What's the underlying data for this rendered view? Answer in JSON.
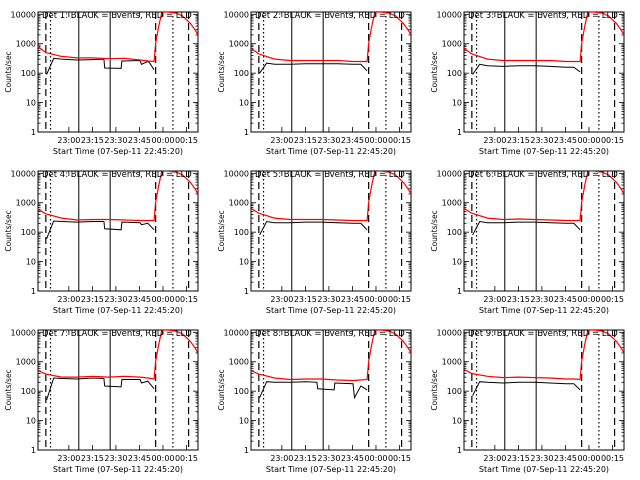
{
  "chart_data": {
    "type": "line",
    "layout": "3x3 grid",
    "x_axis": {
      "label": "Start Time (07-Sep-11 22:45:20)",
      "range_minutes_after_start": [
        -5,
        97
      ],
      "tick_labels": [
        "23:00",
        "23:15",
        "23:30",
        "23:45",
        "00:00",
        "00:15"
      ],
      "tick_minutes_after_start": [
        14.67,
        29.67,
        44.67,
        59.67,
        74.67,
        89.67
      ]
    },
    "y_axis": {
      "label": "Counts/sec",
      "scale": "log",
      "range": [
        1,
        12000
      ],
      "tick_labels": [
        "1",
        "10",
        "100",
        "1000",
        "10000"
      ]
    },
    "colors": {
      "events": "#000000",
      "lld": "#ff0000"
    },
    "marker_lines": [
      {
        "x": 0,
        "style": "dashed"
      },
      {
        "x": 3,
        "style": "dotted"
      },
      {
        "x": 21,
        "style": "solid"
      },
      {
        "x": 41,
        "style": "solid"
      },
      {
        "x": 70,
        "style": "dashed"
      },
      {
        "x": 81,
        "style": "dotted"
      },
      {
        "x": 91,
        "style": "dashed"
      }
    ],
    "panels": [
      {
        "title": "Det 1: BLACK = Events, RED = LLD",
        "lld": {
          "x": [
            -5,
            0,
            10,
            20,
            30,
            40,
            50,
            60,
            65,
            69,
            70,
            72,
            74,
            78,
            83,
            87,
            92,
            95,
            97
          ],
          "y": [
            800,
            500,
            370,
            330,
            330,
            310,
            320,
            280,
            260,
            250,
            1000,
            4000,
            12000,
            12000,
            11000,
            9000,
            5000,
            3000,
            2000
          ]
        },
        "events": {
          "x": [
            0.5,
            5,
            10,
            20,
            30,
            37,
            37.5,
            48,
            48.5,
            60,
            61,
            65,
            66,
            69
          ],
          "y": [
            90,
            320,
            300,
            280,
            290,
            300,
            150,
            145,
            260,
            270,
            200,
            250,
            230,
            130
          ]
        }
      },
      {
        "title": "Det 2: BLACK = Events, RED = LLD",
        "lld": {
          "x": [
            -5,
            0,
            10,
            20,
            30,
            40,
            50,
            60,
            65,
            69,
            70,
            72,
            74,
            78,
            83,
            87,
            92,
            95,
            97
          ],
          "y": [
            700,
            450,
            300,
            270,
            270,
            270,
            270,
            250,
            250,
            250,
            1000,
            4000,
            12000,
            12000,
            11000,
            9000,
            5000,
            3000,
            2000
          ]
        },
        "events": {
          "x": [
            0.5,
            5,
            10,
            20,
            30,
            40,
            50,
            60,
            65,
            69
          ],
          "y": [
            100,
            220,
            200,
            200,
            210,
            210,
            210,
            200,
            200,
            120
          ]
        }
      },
      {
        "title": "Det 3: BLACK = Events, RED = LLD",
        "lld": {
          "x": [
            -5,
            0,
            10,
            20,
            30,
            40,
            50,
            60,
            65,
            69,
            70,
            72,
            74,
            78,
            83,
            87,
            92,
            95,
            97
          ],
          "y": [
            700,
            450,
            300,
            270,
            270,
            270,
            270,
            250,
            250,
            250,
            1000,
            4000,
            12000,
            12000,
            11000,
            9000,
            5000,
            3000,
            2000
          ]
        },
        "events": {
          "x": [
            0.5,
            5,
            10,
            20,
            30,
            40,
            50,
            60,
            65,
            69
          ],
          "y": [
            90,
            200,
            180,
            170,
            180,
            180,
            170,
            160,
            160,
            110
          ]
        }
      },
      {
        "title": "Det 4: BLACK = Events, RED = LLD",
        "lld": {
          "x": [
            -5,
            0,
            10,
            20,
            30,
            40,
            50,
            60,
            65,
            69,
            70,
            72,
            74,
            78,
            83,
            87,
            92,
            95,
            97
          ],
          "y": [
            600,
            420,
            300,
            260,
            270,
            270,
            260,
            250,
            250,
            250,
            1000,
            4000,
            12000,
            12000,
            11000,
            9000,
            5000,
            3000,
            2000
          ]
        },
        "events": {
          "x": [
            0.5,
            5,
            10,
            20,
            30,
            37,
            37.5,
            48,
            48.5,
            60,
            61,
            65,
            69
          ],
          "y": [
            60,
            240,
            230,
            220,
            230,
            230,
            130,
            120,
            220,
            210,
            180,
            200,
            120
          ]
        }
      },
      {
        "title": "Det 5: BLACK = Events, RED = LLD",
        "lld": {
          "x": [
            -5,
            0,
            10,
            20,
            30,
            40,
            50,
            60,
            65,
            69,
            70,
            72,
            74,
            78,
            83,
            87,
            92,
            95,
            97
          ],
          "y": [
            650,
            440,
            300,
            270,
            270,
            270,
            260,
            250,
            250,
            250,
            1000,
            4000,
            12000,
            12000,
            11000,
            9000,
            5000,
            3000,
            2000
          ]
        },
        "events": {
          "x": [
            0.5,
            5,
            10,
            20,
            30,
            40,
            50,
            60,
            65,
            69
          ],
          "y": [
            80,
            230,
            210,
            210,
            220,
            220,
            210,
            200,
            200,
            120
          ]
        }
      },
      {
        "title": "Det 6: BLACK = Events, RED = LLD",
        "lld": {
          "x": [
            -5,
            0,
            10,
            20,
            30,
            40,
            50,
            60,
            65,
            69,
            70,
            72,
            74,
            78,
            83,
            87,
            92,
            95,
            97
          ],
          "y": [
            650,
            440,
            300,
            270,
            280,
            270,
            260,
            250,
            250,
            250,
            1000,
            4000,
            12000,
            12000,
            11000,
            9000,
            5000,
            3000,
            2000
          ]
        },
        "events": {
          "x": [
            0.5,
            5,
            10,
            20,
            30,
            40,
            50,
            60,
            65,
            69
          ],
          "y": [
            80,
            230,
            210,
            210,
            220,
            220,
            210,
            200,
            200,
            120
          ]
        }
      },
      {
        "title": "Det 7: BLACK = Events, RED = LLD",
        "lld": {
          "x": [
            -5,
            0,
            10,
            20,
            30,
            40,
            50,
            60,
            65,
            69,
            70,
            72,
            74,
            78,
            83,
            87,
            92,
            95,
            97
          ],
          "y": [
            500,
            380,
            300,
            300,
            320,
            300,
            320,
            300,
            280,
            260,
            1000,
            4000,
            12000,
            12000,
            11000,
            9000,
            5000,
            3000,
            2000
          ]
        },
        "events": {
          "x": [
            0.5,
            5,
            10,
            20,
            30,
            37,
            37.5,
            48,
            48.5,
            60,
            61,
            65,
            69
          ],
          "y": [
            50,
            280,
            270,
            260,
            280,
            270,
            150,
            140,
            250,
            250,
            190,
            220,
            120
          ]
        }
      },
      {
        "title": "Det 8: BLACK = Events, RED = LLD",
        "lld": {
          "x": [
            -5,
            0,
            10,
            20,
            30,
            40,
            50,
            60,
            65,
            69,
            70,
            72,
            74,
            78,
            83,
            87,
            92,
            95,
            97
          ],
          "y": [
            500,
            380,
            280,
            250,
            260,
            260,
            240,
            230,
            240,
            250,
            1000,
            4000,
            12000,
            12000,
            11000,
            9000,
            5000,
            3000,
            2000
          ]
        },
        "events": {
          "x": [
            0.5,
            5,
            10,
            20,
            30,
            37,
            37.5,
            48,
            48.5,
            60,
            61,
            65,
            66,
            69
          ],
          "y": [
            60,
            210,
            200,
            200,
            210,
            200,
            120,
            110,
            190,
            180,
            60,
            150,
            140,
            110
          ]
        }
      },
      {
        "title": "Det 9: BLACK = Events, RED = LLD",
        "lld": {
          "x": [
            -5,
            0,
            10,
            20,
            30,
            40,
            50,
            60,
            65,
            69,
            70,
            72,
            74,
            78,
            83,
            87,
            92,
            95,
            97
          ],
          "y": [
            550,
            400,
            320,
            290,
            300,
            290,
            280,
            260,
            260,
            250,
            1000,
            4000,
            12000,
            12000,
            11000,
            9000,
            5000,
            3000,
            2000
          ]
        },
        "events": {
          "x": [
            0.5,
            5,
            10,
            20,
            30,
            40,
            50,
            60,
            65,
            69
          ],
          "y": [
            70,
            210,
            200,
            190,
            200,
            200,
            190,
            180,
            180,
            110
          ]
        }
      }
    ]
  }
}
